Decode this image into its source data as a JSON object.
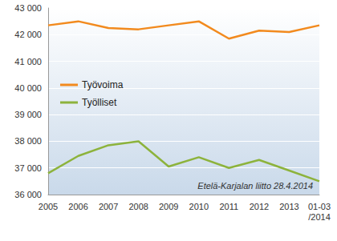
{
  "chart_data": {
    "type": "line",
    "categories": [
      "2005",
      "2006",
      "2007",
      "2008",
      "2009",
      "2010",
      "2011",
      "2012",
      "2013",
      "01-03\n/2014"
    ],
    "series": [
      {
        "name": "Työvoima",
        "color": "#f28a1e",
        "values": [
          42350,
          42500,
          42250,
          42200,
          42350,
          42500,
          41850,
          42150,
          42100,
          42350
        ]
      },
      {
        "name": "Työlliset",
        "color": "#8db33c",
        "values": [
          36800,
          37450,
          37850,
          38000,
          37050,
          37400,
          37000,
          37300,
          36900,
          36500
        ]
      }
    ],
    "ylim": [
      36000,
      43000
    ],
    "yticks": [
      {
        "value": 36000,
        "label": "36 000"
      },
      {
        "value": 37000,
        "label": "37 000"
      },
      {
        "value": 38000,
        "label": "38 000"
      },
      {
        "value": 39000,
        "label": "39 000"
      },
      {
        "value": 40000,
        "label": "40 000"
      },
      {
        "value": 41000,
        "label": "41 000"
      },
      {
        "value": 42000,
        "label": "42 000"
      },
      {
        "value": 43000,
        "label": "43 000"
      }
    ],
    "annotations": [
      "Etelä-Karjalan liitto 28.4.2014"
    ],
    "grid": true,
    "legend": "left"
  }
}
